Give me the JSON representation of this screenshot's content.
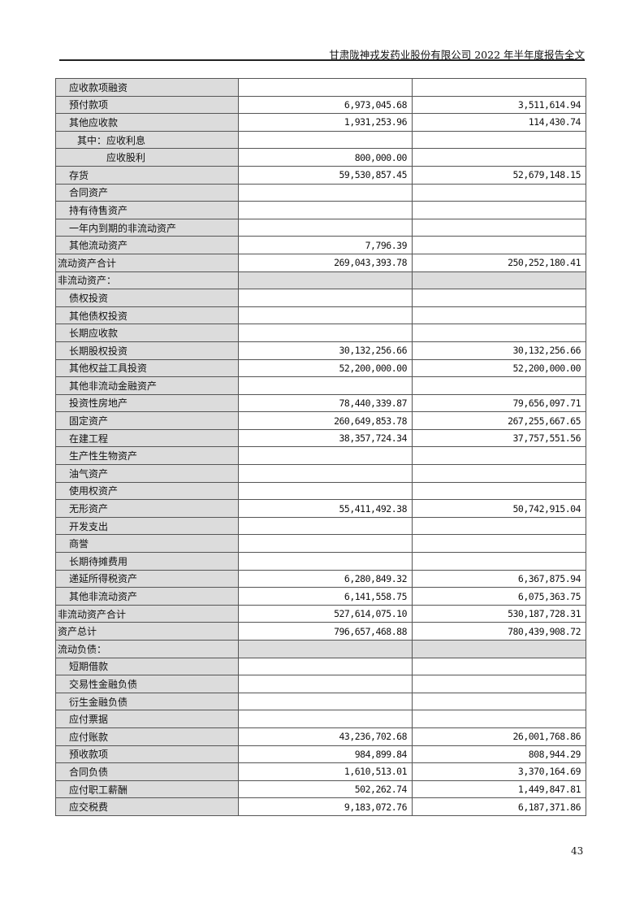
{
  "header": {
    "title": "甘肃陇神戎发药业股份有限公司 2022 年半年度报告全文"
  },
  "rows": [
    {
      "label": "应收款项融资",
      "level": 1,
      "a": "",
      "b": ""
    },
    {
      "label": "预付款项",
      "level": 1,
      "a": "6,973,045.68",
      "b": "3,511,614.94"
    },
    {
      "label": "其他应收款",
      "level": 1,
      "a": "1,931,253.96",
      "b": "114,430.74"
    },
    {
      "label": "其中：应收利息",
      "level": 2,
      "a": "",
      "b": ""
    },
    {
      "label": "应收股利",
      "level": 3,
      "a": "800,000.00",
      "b": ""
    },
    {
      "label": "存货",
      "level": 1,
      "a": "59,530,857.45",
      "b": "52,679,148.15"
    },
    {
      "label": "合同资产",
      "level": 1,
      "a": "",
      "b": ""
    },
    {
      "label": "持有待售资产",
      "level": 1,
      "a": "",
      "b": ""
    },
    {
      "label": "一年内到期的非流动资产",
      "level": 1,
      "a": "",
      "b": ""
    },
    {
      "label": "其他流动资产",
      "level": 1,
      "a": "7,796.39",
      "b": ""
    },
    {
      "label": "流动资产合计",
      "level": 0,
      "a": "269,043,393.78",
      "b": "250,252,180.41"
    },
    {
      "label": "非流动资产：",
      "level": 0,
      "section": true,
      "a": "",
      "b": ""
    },
    {
      "label": "债权投资",
      "level": 1,
      "a": "",
      "b": ""
    },
    {
      "label": "其他债权投资",
      "level": 1,
      "a": "",
      "b": ""
    },
    {
      "label": "长期应收款",
      "level": 1,
      "a": "",
      "b": ""
    },
    {
      "label": "长期股权投资",
      "level": 1,
      "a": "30,132,256.66",
      "b": "30,132,256.66"
    },
    {
      "label": "其他权益工具投资",
      "level": 1,
      "a": "52,200,000.00",
      "b": "52,200,000.00"
    },
    {
      "label": "其他非流动金融资产",
      "level": 1,
      "a": "",
      "b": ""
    },
    {
      "label": "投资性房地产",
      "level": 1,
      "a": "78,440,339.87",
      "b": "79,656,097.71"
    },
    {
      "label": "固定资产",
      "level": 1,
      "a": "260,649,853.78",
      "b": "267,255,667.65"
    },
    {
      "label": "在建工程",
      "level": 1,
      "a": "38,357,724.34",
      "b": "37,757,551.56"
    },
    {
      "label": "生产性生物资产",
      "level": 1,
      "a": "",
      "b": ""
    },
    {
      "label": "油气资产",
      "level": 1,
      "a": "",
      "b": ""
    },
    {
      "label": "使用权资产",
      "level": 1,
      "a": "",
      "b": ""
    },
    {
      "label": "无形资产",
      "level": 1,
      "a": "55,411,492.38",
      "b": "50,742,915.04"
    },
    {
      "label": "开发支出",
      "level": 1,
      "a": "",
      "b": ""
    },
    {
      "label": "商誉",
      "level": 1,
      "a": "",
      "b": ""
    },
    {
      "label": "长期待摊费用",
      "level": 1,
      "a": "",
      "b": ""
    },
    {
      "label": "递延所得税资产",
      "level": 1,
      "a": "6,280,849.32",
      "b": "6,367,875.94"
    },
    {
      "label": "其他非流动资产",
      "level": 1,
      "a": "6,141,558.75",
      "b": "6,075,363.75"
    },
    {
      "label": "非流动资产合计",
      "level": 0,
      "a": "527,614,075.10",
      "b": "530,187,728.31"
    },
    {
      "label": "资产总计",
      "level": 0,
      "a": "796,657,468.88",
      "b": "780,439,908.72"
    },
    {
      "label": "流动负债：",
      "level": 0,
      "section": true,
      "a": "",
      "b": ""
    },
    {
      "label": "短期借款",
      "level": 1,
      "a": "",
      "b": ""
    },
    {
      "label": "交易性金融负债",
      "level": 1,
      "a": "",
      "b": ""
    },
    {
      "label": "衍生金融负债",
      "level": 1,
      "a": "",
      "b": ""
    },
    {
      "label": "应付票据",
      "level": 1,
      "a": "",
      "b": ""
    },
    {
      "label": "应付账款",
      "level": 1,
      "a": "43,236,702.68",
      "b": "26,001,768.86"
    },
    {
      "label": "预收款项",
      "level": 1,
      "a": "984,899.84",
      "b": "808,944.29"
    },
    {
      "label": "合同负债",
      "level": 1,
      "a": "1,610,513.01",
      "b": "3,370,164.69"
    },
    {
      "label": "应付职工薪酬",
      "level": 1,
      "a": "502,262.74",
      "b": "1,449,847.81"
    },
    {
      "label": "应交税费",
      "level": 1,
      "a": "9,183,072.76",
      "b": "6,187,371.86"
    }
  ],
  "footer": {
    "page_number": "43"
  }
}
